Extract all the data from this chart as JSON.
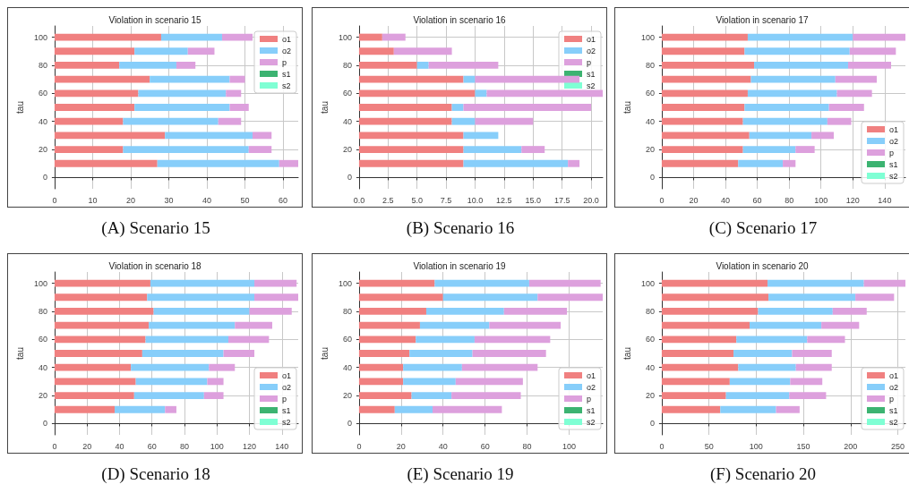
{
  "chart_data": [
    {
      "type": "bar",
      "title": "Violation in scenario 15",
      "ylabel": "tau",
      "annotations": [
        "(A) Scenario 15"
      ],
      "orientation": "horizontal",
      "stacked": true,
      "grid": true,
      "legend": "top right",
      "x": [
        10,
        20,
        30,
        40,
        50,
        60,
        70,
        80,
        90,
        100
      ],
      "xlim": [
        0,
        64
      ],
      "xticks": [
        0,
        10,
        20,
        30,
        40,
        50,
        60
      ],
      "ylim": [
        -8,
        108
      ],
      "yticks": [
        0,
        20,
        40,
        60,
        80,
        100
      ],
      "series": [
        {
          "name": "o1",
          "color": "#f08080",
          "values": [
            27,
            18,
            29,
            18,
            21,
            22,
            25,
            17,
            21,
            28
          ]
        },
        {
          "name": "o2",
          "color": "#87cefa",
          "values": [
            32,
            33,
            23,
            25,
            25,
            23,
            21,
            15,
            14,
            16
          ]
        },
        {
          "name": "p",
          "color": "#dda0dd",
          "values": [
            5,
            6,
            5,
            6,
            5,
            4,
            4,
            5,
            7,
            8
          ]
        },
        {
          "name": "s1",
          "color": "#3cb371",
          "values": [
            0,
            0,
            0,
            0,
            0,
            0,
            0,
            0,
            0,
            0
          ]
        },
        {
          "name": "s2",
          "color": "#7fffd4",
          "values": [
            0,
            0,
            0,
            0,
            0,
            0,
            0,
            0,
            0,
            0
          ]
        }
      ]
    },
    {
      "type": "bar",
      "title": "Violation in scenario 16",
      "ylabel": "tau",
      "annotations": [
        "(B) Scenario 16"
      ],
      "orientation": "horizontal",
      "stacked": true,
      "grid": true,
      "legend": "top right",
      "x": [
        10,
        20,
        30,
        40,
        50,
        60,
        70,
        80,
        90,
        100
      ],
      "xlim": [
        0,
        21
      ],
      "xticks": [
        {
          "value": 0,
          "label": "0.0"
        },
        2.5,
        {
          "value": 5,
          "label": "5.0"
        },
        7.5,
        {
          "value": 10,
          "label": "10.0"
        },
        12.5,
        {
          "value": 15,
          "label": "15.0"
        },
        17.5,
        {
          "value": 20,
          "label": "20.0"
        }
      ],
      "ylim": [
        -8,
        108
      ],
      "yticks": [
        0,
        20,
        40,
        60,
        80,
        100
      ],
      "series": [
        {
          "name": "o1",
          "color": "#f08080",
          "values": [
            9,
            9,
            9,
            8,
            8,
            10,
            9,
            5,
            3,
            2
          ]
        },
        {
          "name": "o2",
          "color": "#87cefa",
          "values": [
            9,
            5,
            3,
            2,
            1,
            1,
            1,
            1,
            0,
            0
          ]
        },
        {
          "name": "p",
          "color": "#dda0dd",
          "values": [
            1,
            2,
            0,
            5,
            11,
            10,
            9,
            6,
            5,
            2
          ]
        },
        {
          "name": "s1",
          "color": "#3cb371",
          "values": [
            0,
            0,
            0,
            0,
            0,
            0,
            0,
            0,
            0,
            0
          ]
        },
        {
          "name": "s2",
          "color": "#7fffd4",
          "values": [
            0,
            0,
            0,
            0,
            0,
            0,
            0,
            0,
            0,
            0
          ]
        }
      ]
    },
    {
      "type": "bar",
      "title": "Violation in scenario 17",
      "ylabel": "tau",
      "annotations": [
        "(C) Scenario 17"
      ],
      "orientation": "horizontal",
      "stacked": true,
      "grid": true,
      "legend": "bottom right",
      "x": [
        10,
        20,
        30,
        40,
        50,
        60,
        70,
        80,
        90,
        100
      ],
      "xlim": [
        0,
        153
      ],
      "xticks": [
        0,
        20,
        40,
        60,
        80,
        100,
        120,
        140
      ],
      "ylim": [
        -8,
        108
      ],
      "yticks": [
        0,
        20,
        40,
        60,
        80,
        100
      ],
      "series": [
        {
          "name": "o1",
          "color": "#f08080",
          "values": [
            48,
            51,
            55,
            51,
            52,
            54,
            56,
            58,
            52,
            54
          ]
        },
        {
          "name": "o2",
          "color": "#87cefa",
          "values": [
            28,
            33,
            39,
            53,
            53,
            56,
            53,
            59,
            66,
            66
          ]
        },
        {
          "name": "p",
          "color": "#dda0dd",
          "values": [
            8,
            12,
            14,
            15,
            22,
            22,
            26,
            27,
            29,
            33
          ]
        },
        {
          "name": "s1",
          "color": "#3cb371",
          "values": [
            0,
            0,
            0,
            0,
            0,
            0,
            0,
            0,
            0,
            0
          ]
        },
        {
          "name": "s2",
          "color": "#7fffd4",
          "values": [
            0,
            0,
            0,
            0,
            0,
            0,
            0,
            0,
            0,
            0
          ]
        }
      ]
    },
    {
      "type": "bar",
      "title": "Violation in scenario 18",
      "ylabel": "tau",
      "annotations": [
        "(D) Scenario 18"
      ],
      "orientation": "horizontal",
      "stacked": true,
      "grid": true,
      "legend": "bottom right",
      "x": [
        10,
        20,
        30,
        40,
        50,
        60,
        70,
        80,
        90,
        100
      ],
      "xlim": [
        0,
        150
      ],
      "xticks": [
        0,
        20,
        40,
        60,
        80,
        100,
        120,
        140
      ],
      "ylim": [
        -8,
        108
      ],
      "yticks": [
        0,
        20,
        40,
        60,
        80,
        100
      ],
      "series": [
        {
          "name": "o1",
          "color": "#f08080",
          "values": [
            37,
            49,
            50,
            47,
            54,
            56,
            58,
            61,
            57,
            59
          ]
        },
        {
          "name": "o2",
          "color": "#87cefa",
          "values": [
            31,
            43,
            44,
            48,
            50,
            51,
            53,
            59,
            66,
            64
          ]
        },
        {
          "name": "p",
          "color": "#dda0dd",
          "values": [
            7,
            12,
            10,
            16,
            19,
            25,
            23,
            26,
            27,
            26
          ]
        },
        {
          "name": "s1",
          "color": "#3cb371",
          "values": [
            0,
            0,
            0,
            0,
            0,
            0,
            0,
            0,
            0,
            0
          ]
        },
        {
          "name": "s2",
          "color": "#7fffd4",
          "values": [
            0,
            0,
            0,
            0,
            0,
            0,
            0,
            0,
            0,
            0
          ]
        }
      ]
    },
    {
      "type": "bar",
      "title": "Violation in scenario 19",
      "ylabel": "tau",
      "annotations": [
        "(E) Scenario 19"
      ],
      "orientation": "horizontal",
      "stacked": true,
      "grid": true,
      "legend": "bottom right",
      "x": [
        10,
        20,
        30,
        40,
        50,
        60,
        70,
        80,
        90,
        100
      ],
      "xlim": [
        0,
        116
      ],
      "xticks": [
        0,
        20,
        40,
        60,
        80,
        100
      ],
      "ylim": [
        -8,
        108
      ],
      "yticks": [
        0,
        20,
        40,
        60,
        80,
        100
      ],
      "series": [
        {
          "name": "o1",
          "color": "#f08080",
          "values": [
            17,
            25,
            21,
            21,
            24,
            27,
            29,
            32,
            40,
            36
          ]
        },
        {
          "name": "o2",
          "color": "#87cefa",
          "values": [
            18,
            19,
            25,
            28,
            30,
            28,
            33,
            37,
            45,
            45
          ]
        },
        {
          "name": "p",
          "color": "#dda0dd",
          "values": [
            33,
            33,
            32,
            36,
            35,
            36,
            34,
            30,
            31,
            34
          ]
        },
        {
          "name": "s1",
          "color": "#3cb371",
          "values": [
            0,
            0,
            0,
            0,
            0,
            0,
            0,
            0,
            0,
            0
          ]
        },
        {
          "name": "s2",
          "color": "#7fffd4",
          "values": [
            0,
            0,
            0,
            0,
            0,
            0,
            0,
            0,
            0,
            0
          ]
        }
      ]
    },
    {
      "type": "bar",
      "title": "Violation in scenario 20",
      "ylabel": "tau",
      "annotations": [
        "(F) Scenario 20"
      ],
      "orientation": "horizontal",
      "stacked": true,
      "grid": true,
      "legend": "bottom right",
      "x": [
        10,
        20,
        30,
        40,
        50,
        60,
        70,
        80,
        90,
        100
      ],
      "xlim": [
        0,
        258
      ],
      "xticks": [
        0,
        50,
        100,
        150,
        200,
        250
      ],
      "ylim": [
        -8,
        108
      ],
      "yticks": [
        0,
        20,
        40,
        60,
        80,
        100
      ],
      "series": [
        {
          "name": "o1",
          "color": "#f08080",
          "values": [
            62,
            68,
            72,
            81,
            76,
            79,
            93,
            102,
            113,
            112
          ]
        },
        {
          "name": "o2",
          "color": "#87cefa",
          "values": [
            59,
            67,
            64,
            61,
            62,
            75,
            76,
            79,
            92,
            102
          ]
        },
        {
          "name": "p",
          "color": "#dda0dd",
          "values": [
            25,
            39,
            34,
            38,
            42,
            40,
            40,
            36,
            41,
            44
          ]
        },
        {
          "name": "s1",
          "color": "#3cb371",
          "values": [
            0,
            0,
            0,
            0,
            0,
            0,
            0,
            0,
            0,
            0
          ]
        },
        {
          "name": "s2",
          "color": "#7fffd4",
          "values": [
            0,
            0,
            0,
            0,
            0,
            0,
            0,
            0,
            0,
            0
          ]
        }
      ]
    }
  ]
}
